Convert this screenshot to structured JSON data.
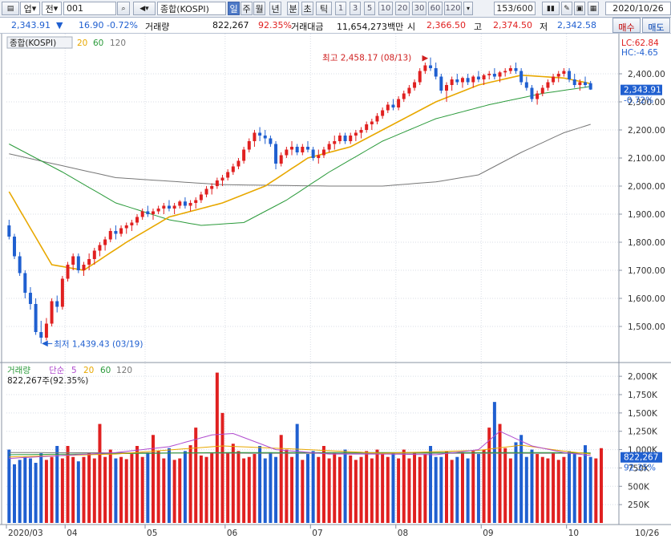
{
  "toolbar": {
    "cells": [
      "업",
      "전",
      "001",
      "종합(KOSPI)",
      "일",
      "주",
      "월",
      "년",
      "분",
      "초",
      "틱",
      "1",
      "3",
      "5",
      "10",
      "20",
      "30",
      "60",
      "120",
      "153",
      "/600",
      "2020/10/26"
    ],
    "selected": "일"
  },
  "infobar": {
    "price": "2,343.91",
    "arrow": "▼",
    "change": "16.90",
    "change_pct": "-0.72%",
    "volume_label": "거래량",
    "volume": "822,267",
    "volume_pct": "92.35%",
    "amount_label": "거래대금",
    "amount": "11,654,273백만",
    "open_label": "시",
    "open": "2,366.50",
    "high_label": "고",
    "high": "2,374.50",
    "low_label": "저",
    "low": "2,342.58",
    "buy_label": "매수",
    "sell_label": "매도"
  },
  "price_pane": {
    "legend": [
      "종합(KOSPI)",
      "20",
      "60",
      "120"
    ],
    "lc": "LC:62.84",
    "hc": "HC:-4.65",
    "current_tag": "2,343.91",
    "current_pct": "-0.72%",
    "high_note": "최고 2,458.17 (08/13)",
    "low_note": "최저 1,439.43 (03/19)"
  },
  "volume_pane": {
    "legend": [
      "거래량",
      "단순",
      "5",
      "20",
      "60",
      "120"
    ],
    "value_line": "822,267주(92.35%)",
    "current_tag": "822,267",
    "current_pct": "92.35%"
  },
  "colors": {
    "up": "#e02020",
    "down": "#1f5fd0",
    "ma5": "#b04bcf",
    "ma20": "#e8a800",
    "ma60": "#2a9a3a",
    "ma120": "#777777"
  },
  "chart_data": [
    {
      "type": "candlestick",
      "title": "종합(KOSPI)",
      "ylim": [
        1400,
        2480
      ],
      "yticks": [
        "2,400.00",
        "2,300.00",
        "2,200.00",
        "2,100.00",
        "2,000.00",
        "1,900.00",
        "1,800.00",
        "1,700.00",
        "1,600.00",
        "1,500.00"
      ],
      "x_labels": [
        "2020/03",
        "04",
        "05",
        "06",
        "07",
        "08",
        "09",
        "10",
        "10/26"
      ],
      "ohlc": [
        [
          1860,
          1880,
          1810,
          1820
        ],
        [
          1820,
          1830,
          1740,
          1750
        ],
        [
          1750,
          1765,
          1680,
          1690
        ],
        [
          1690,
          1700,
          1600,
          1620
        ],
        [
          1620,
          1640,
          1560,
          1580
        ],
        [
          1580,
          1600,
          1470,
          1480
        ],
        [
          1480,
          1520,
          1439,
          1460
        ],
        [
          1460,
          1530,
          1450,
          1510
        ],
        [
          1510,
          1600,
          1500,
          1590
        ],
        [
          1590,
          1610,
          1550,
          1570
        ],
        [
          1570,
          1680,
          1560,
          1670
        ],
        [
          1670,
          1730,
          1660,
          1720
        ],
        [
          1720,
          1760,
          1700,
          1750
        ],
        [
          1750,
          1760,
          1690,
          1700
        ],
        [
          1700,
          1730,
          1680,
          1720
        ],
        [
          1720,
          1760,
          1700,
          1740
        ],
        [
          1740,
          1780,
          1720,
          1770
        ],
        [
          1770,
          1800,
          1750,
          1790
        ],
        [
          1790,
          1820,
          1770,
          1810
        ],
        [
          1810,
          1850,
          1800,
          1840
        ],
        [
          1840,
          1860,
          1810,
          1830
        ],
        [
          1830,
          1860,
          1820,
          1850
        ],
        [
          1850,
          1870,
          1830,
          1860
        ],
        [
          1860,
          1880,
          1840,
          1870
        ],
        [
          1870,
          1900,
          1860,
          1890
        ],
        [
          1890,
          1920,
          1880,
          1910
        ],
        [
          1910,
          1930,
          1890,
          1900
        ],
        [
          1900,
          1920,
          1880,
          1910
        ],
        [
          1910,
          1930,
          1900,
          1920
        ],
        [
          1920,
          1940,
          1900,
          1930
        ],
        [
          1930,
          1950,
          1910,
          1920
        ],
        [
          1920,
          1940,
          1900,
          1930
        ],
        [
          1930,
          1950,
          1920,
          1945
        ],
        [
          1945,
          1960,
          1920,
          1930
        ],
        [
          1930,
          1950,
          1910,
          1940
        ],
        [
          1940,
          1960,
          1920,
          1950
        ],
        [
          1950,
          1980,
          1940,
          1970
        ],
        [
          1970,
          2000,
          1960,
          1990
        ],
        [
          1990,
          2010,
          1970,
          2000
        ],
        [
          2000,
          2030,
          1990,
          2020
        ],
        [
          2020,
          2040,
          2000,
          2030
        ],
        [
          2030,
          2060,
          2020,
          2050
        ],
        [
          2050,
          2080,
          2040,
          2070
        ],
        [
          2070,
          2100,
          2060,
          2090
        ],
        [
          2090,
          2140,
          2080,
          2130
        ],
        [
          2130,
          2170,
          2120,
          2160
        ],
        [
          2160,
          2200,
          2140,
          2190
        ],
        [
          2190,
          2210,
          2160,
          2180
        ],
        [
          2180,
          2200,
          2150,
          2170
        ],
        [
          2170,
          2180,
          2140,
          2150
        ],
        [
          2150,
          2160,
          2060,
          2080
        ],
        [
          2080,
          2120,
          2070,
          2110
        ],
        [
          2110,
          2140,
          2100,
          2130
        ],
        [
          2130,
          2160,
          2110,
          2140
        ],
        [
          2140,
          2150,
          2110,
          2120
        ],
        [
          2120,
          2150,
          2110,
          2140
        ],
        [
          2140,
          2160,
          2120,
          2130
        ],
        [
          2130,
          2140,
          2090,
          2100
        ],
        [
          2100,
          2130,
          2080,
          2110
        ],
        [
          2110,
          2140,
          2100,
          2130
        ],
        [
          2130,
          2160,
          2120,
          2150
        ],
        [
          2150,
          2180,
          2130,
          2160
        ],
        [
          2160,
          2190,
          2150,
          2180
        ],
        [
          2180,
          2190,
          2150,
          2160
        ],
        [
          2160,
          2190,
          2150,
          2180
        ],
        [
          2180,
          2200,
          2160,
          2190
        ],
        [
          2190,
          2210,
          2170,
          2200
        ],
        [
          2200,
          2230,
          2190,
          2220
        ],
        [
          2220,
          2240,
          2200,
          2230
        ],
        [
          2230,
          2260,
          2220,
          2250
        ],
        [
          2250,
          2280,
          2240,
          2270
        ],
        [
          2270,
          2300,
          2260,
          2290
        ],
        [
          2290,
          2310,
          2270,
          2280
        ],
        [
          2280,
          2320,
          2270,
          2310
        ],
        [
          2310,
          2340,
          2300,
          2330
        ],
        [
          2330,
          2360,
          2320,
          2350
        ],
        [
          2350,
          2380,
          2340,
          2370
        ],
        [
          2370,
          2420,
          2360,
          2410
        ],
        [
          2410,
          2440,
          2400,
          2430
        ],
        [
          2430,
          2458,
          2410,
          2420
        ],
        [
          2420,
          2440,
          2380,
          2390
        ],
        [
          2390,
          2400,
          2330,
          2340
        ],
        [
          2340,
          2370,
          2300,
          2360
        ],
        [
          2360,
          2390,
          2340,
          2380
        ],
        [
          2380,
          2400,
          2360,
          2370
        ],
        [
          2370,
          2390,
          2350,
          2385
        ],
        [
          2385,
          2400,
          2360,
          2370
        ],
        [
          2370,
          2395,
          2350,
          2390
        ],
        [
          2390,
          2410,
          2370,
          2380
        ],
        [
          2380,
          2400,
          2360,
          2395
        ],
        [
          2395,
          2410,
          2380,
          2400
        ],
        [
          2400,
          2420,
          2380,
          2390
        ],
        [
          2390,
          2410,
          2370,
          2405
        ],
        [
          2405,
          2420,
          2390,
          2410
        ],
        [
          2410,
          2430,
          2400,
          2420
        ],
        [
          2420,
          2440,
          2400,
          2410
        ],
        [
          2410,
          2420,
          2360,
          2370
        ],
        [
          2370,
          2390,
          2340,
          2350
        ],
        [
          2350,
          2360,
          2300,
          2310
        ],
        [
          2310,
          2340,
          2290,
          2330
        ],
        [
          2330,
          2360,
          2320,
          2350
        ],
        [
          2350,
          2380,
          2340,
          2370
        ],
        [
          2370,
          2400,
          2360,
          2390
        ],
        [
          2390,
          2410,
          2370,
          2400
        ],
        [
          2400,
          2420,
          2390,
          2410
        ],
        [
          2410,
          2420,
          2370,
          2380
        ],
        [
          2380,
          2400,
          2350,
          2360
        ],
        [
          2360,
          2380,
          2340,
          2370
        ],
        [
          2370,
          2390,
          2350,
          2360
        ],
        [
          2366.5,
          2374.5,
          2342.58,
          2343.91
        ]
      ],
      "ma20_anchors": [
        [
          0,
          1980
        ],
        [
          8,
          1720
        ],
        [
          14,
          1700
        ],
        [
          22,
          1800
        ],
        [
          30,
          1890
        ],
        [
          40,
          1940
        ],
        [
          48,
          2000
        ],
        [
          56,
          2100
        ],
        [
          64,
          2140
        ],
        [
          72,
          2220
        ],
        [
          80,
          2300
        ],
        [
          88,
          2360
        ],
        [
          96,
          2395
        ],
        [
          104,
          2385
        ],
        [
          109,
          2365
        ]
      ],
      "ma60_anchors": [
        [
          0,
          2150
        ],
        [
          10,
          2050
        ],
        [
          20,
          1940
        ],
        [
          30,
          1880
        ],
        [
          36,
          1860
        ],
        [
          44,
          1870
        ],
        [
          52,
          1950
        ],
        [
          60,
          2050
        ],
        [
          70,
          2160
        ],
        [
          80,
          2240
        ],
        [
          90,
          2290
        ],
        [
          100,
          2330
        ],
        [
          109,
          2355
        ]
      ],
      "ma120_anchors": [
        [
          0,
          2115
        ],
        [
          20,
          2030
        ],
        [
          40,
          2005
        ],
        [
          60,
          2000
        ],
        [
          70,
          2000
        ],
        [
          80,
          2015
        ],
        [
          88,
          2040
        ],
        [
          96,
          2120
        ],
        [
          104,
          2190
        ],
        [
          109,
          2220
        ]
      ]
    },
    {
      "type": "bar",
      "title": "거래량",
      "ylim": [
        0,
        2100
      ],
      "yticks": [
        "2,000K",
        "1,750K",
        "1,500K",
        "1,250K",
        "1,000K",
        "750K",
        "500K",
        "250K"
      ],
      "unit": "K",
      "volumes": [
        1000,
        800,
        860,
        900,
        880,
        820,
        950,
        860,
        900,
        1050,
        880,
        1050,
        900,
        840,
        900,
        960,
        880,
        1350,
        900,
        1000,
        880,
        900,
        870,
        940,
        1050,
        900,
        960,
        1200,
        980,
        880,
        1020,
        860,
        880,
        980,
        1060,
        1300,
        920,
        900,
        950,
        2050,
        1500,
        960,
        1080,
        980,
        880,
        900,
        940,
        1050,
        880,
        960,
        900,
        1200,
        1000,
        900,
        1350,
        860,
        940,
        980,
        900,
        1050,
        880,
        960,
        900,
        1000,
        920,
        860,
        900,
        980,
        880,
        1000,
        940,
        900,
        960,
        880,
        1000,
        880,
        960,
        900,
        940,
        1050,
        900,
        900,
        980,
        860,
        900,
        960,
        880,
        980,
        940,
        1000,
        1300,
        1650,
        1350,
        1020,
        880,
        1100,
        1200,
        900,
        1000,
        940,
        900,
        880,
        960,
        860,
        900,
        980,
        940,
        900,
        1060,
        900,
        880,
        1020
      ],
      "ma5_anchors": [
        [
          0,
          880
        ],
        [
          10,
          920
        ],
        [
          20,
          960
        ],
        [
          30,
          1040
        ],
        [
          38,
          1200
        ],
        [
          42,
          1220
        ],
        [
          50,
          1000
        ],
        [
          60,
          940
        ],
        [
          70,
          940
        ],
        [
          80,
          930
        ],
        [
          88,
          1000
        ],
        [
          92,
          1250
        ],
        [
          98,
          1050
        ],
        [
          104,
          960
        ],
        [
          109,
          920
        ]
      ],
      "ma20_anchors": [
        [
          0,
          900
        ],
        [
          20,
          940
        ],
        [
          40,
          1050
        ],
        [
          56,
          1000
        ],
        [
          70,
          950
        ],
        [
          88,
          990
        ],
        [
          96,
          1060
        ],
        [
          104,
          980
        ],
        [
          109,
          940
        ]
      ],
      "ma60_anchors": [
        [
          0,
          930
        ],
        [
          40,
          960
        ],
        [
          70,
          960
        ],
        [
          100,
          960
        ],
        [
          109,
          955
        ]
      ],
      "ma120_anchors": [
        [
          0,
          960
        ],
        [
          50,
          950
        ],
        [
          109,
          950
        ]
      ]
    }
  ]
}
